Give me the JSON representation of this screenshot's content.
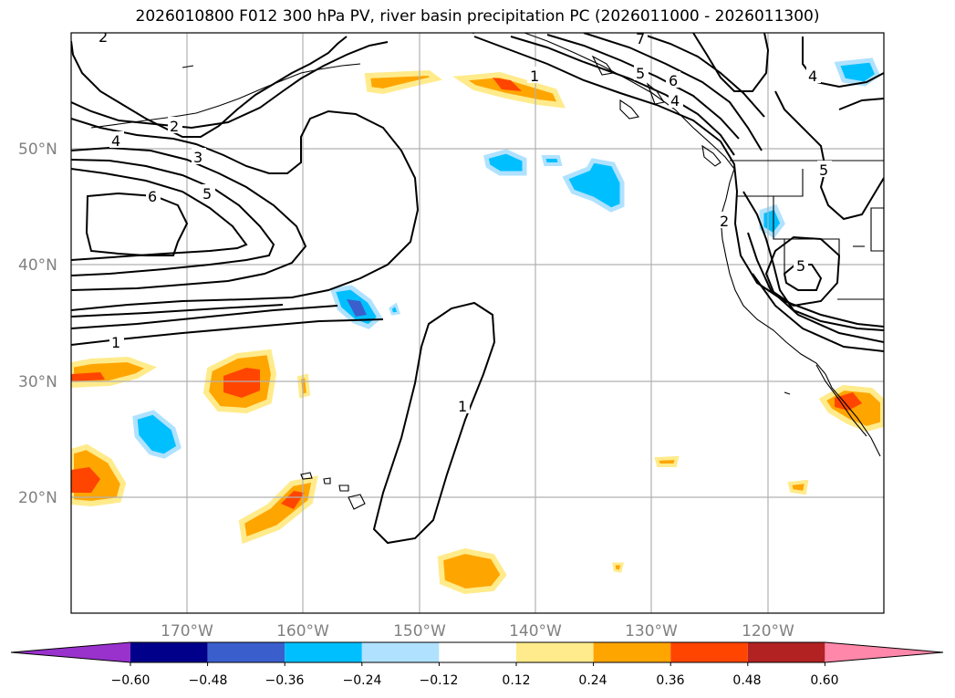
{
  "title": "2026010800 F012 300 hPa PV, river basin precipitation PC (2026011000 - 2026011300)",
  "map": {
    "lat_labels": [
      "50°N",
      "40°N",
      "30°N",
      "20°N"
    ],
    "lon_labels": [
      "170°W",
      "160°W",
      "150°W",
      "140°W",
      "130°W",
      "120°W"
    ],
    "contour_labels": [
      "2",
      "2",
      "3",
      "4",
      "5",
      "6",
      "1",
      "1",
      "1",
      "4",
      "5",
      "5",
      "6",
      "7",
      "2",
      "5",
      "4"
    ]
  },
  "colorbar": {
    "tick_labels": [
      "−0.60",
      "−0.48",
      "−0.36",
      "−0.24",
      "−0.12",
      "0.12",
      "0.24",
      "0.36",
      "0.48",
      "0.60"
    ],
    "colors": [
      "#9932cc",
      "#00008b",
      "#3a5fcd",
      "#00bfff",
      "#b0e2ff",
      "#ffffff",
      "#ffeb8b",
      "#ffa500",
      "#ff4500",
      "#b22222",
      "#ff88aa"
    ]
  }
}
